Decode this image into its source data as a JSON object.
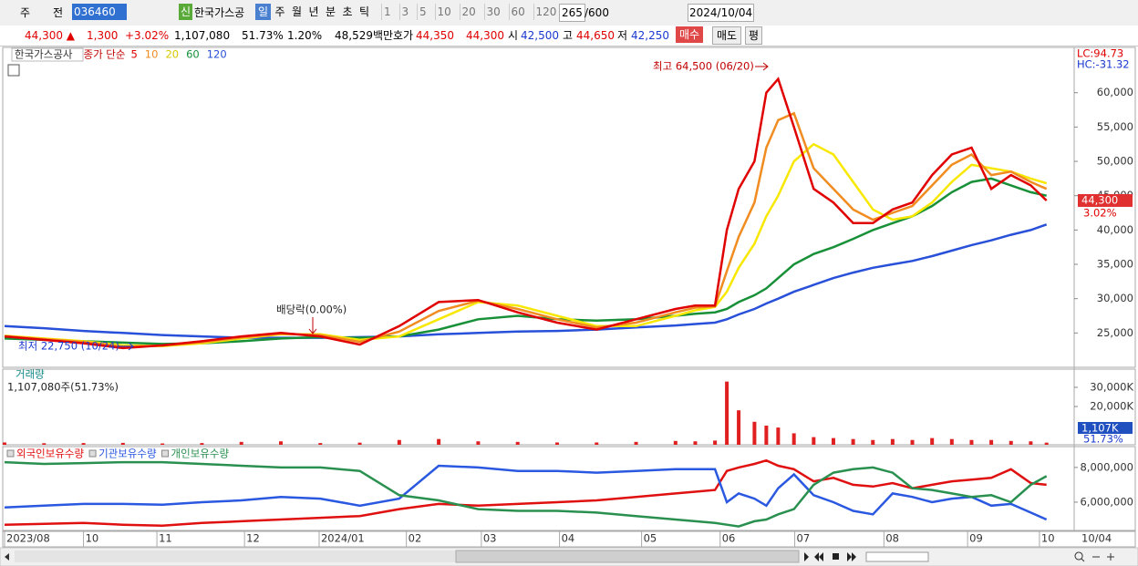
{
  "toolbar": {
    "market": "주",
    "prev": "전",
    "code": "036460",
    "sin": "신",
    "name": "한국가스공",
    "periods": [
      "일",
      "주",
      "월",
      "년",
      "분",
      "초",
      "틱"
    ],
    "intervals": [
      "1",
      "3",
      "5",
      "10",
      "20",
      "30",
      "60",
      "120"
    ],
    "count": "265",
    "max": "/600",
    "date": "2024/10/04"
  },
  "quote": {
    "price": "44,300 ▲",
    "change": "1,300",
    "change_pct": "+3.02%",
    "volume": "1,107,080",
    "volume_ratio": "51.73%",
    "turnover": "1.20%",
    "amount": "48,529백만",
    "bid_label": "호가",
    "ask": "44,350",
    "bid": "44,300",
    "open_label": "시",
    "open": "42,500",
    "high_label": "고",
    "high": "44,650",
    "low_label": "저",
    "low": "42,250",
    "buy": "매수",
    "sell": "매도",
    "avg": "평"
  },
  "chart_data": [
    {
      "type": "line",
      "title": "한국가스공사",
      "legend_label": "종가 단순",
      "lc": "LC:94.73",
      "hc": "HC:-31.32",
      "last_label": "44,300",
      "last_pct": "3.02%",
      "last_value": 44300,
      "annotations": [
        "최고 64,500 (06/20)",
        "최저 22,750 (10/24)",
        "배당락(0.00%)"
      ],
      "x": [
        0,
        10,
        20,
        30,
        40,
        50,
        60,
        70,
        80,
        90,
        100,
        110,
        120,
        130,
        140,
        150,
        160,
        170,
        175,
        180,
        183,
        186,
        190,
        193,
        196,
        200,
        205,
        210,
        215,
        220,
        225,
        230,
        235,
        240,
        245,
        250,
        255,
        260,
        264
      ],
      "xlim": [
        0,
        271
      ],
      "ylim": [
        20000,
        66600
      ],
      "yticks": [
        {
          "value": 25000,
          "label": "25,000"
        },
        {
          "value": 30000,
          "label": "30,000"
        },
        {
          "value": 35000,
          "label": "35,000"
        },
        {
          "value": 40000,
          "label": "40,000"
        },
        {
          "value": 45000,
          "label": "45,000"
        },
        {
          "value": 50000,
          "label": "50,000"
        },
        {
          "value": 55000,
          "label": "55,000"
        },
        {
          "value": 60000,
          "label": "60,000"
        }
      ],
      "series": [
        {
          "name": "120",
          "color": "#2850d8",
          "values": [
            26000,
            25700,
            25300,
            25000,
            24700,
            24500,
            24300,
            24300,
            24300,
            24400,
            24500,
            24800,
            25000,
            25200,
            25300,
            25500,
            25800,
            26100,
            26300,
            26500,
            27000,
            27700,
            28500,
            29300,
            30000,
            31000,
            32000,
            33000,
            33800,
            34500,
            35000,
            35500,
            36200,
            37000,
            37800,
            38500,
            39300,
            40000,
            40800
          ]
        },
        {
          "name": "60",
          "color": "#189038",
          "values": [
            24200,
            24000,
            23800,
            23600,
            23400,
            23500,
            23800,
            24200,
            24400,
            24300,
            24500,
            25500,
            27000,
            27500,
            27000,
            26800,
            27000,
            27500,
            27800,
            28000,
            28500,
            29500,
            30500,
            31500,
            33000,
            35000,
            36500,
            37500,
            38700,
            40000,
            41000,
            42000,
            43500,
            45500,
            47000,
            47500,
            46500,
            45500,
            45000
          ]
        },
        {
          "name": "20",
          "color": "#f8e800",
          "values": [
            24600,
            24200,
            23800,
            23200,
            23100,
            23500,
            24200,
            24800,
            24800,
            24000,
            24500,
            27000,
            29500,
            29000,
            27500,
            26000,
            26000,
            27500,
            28300,
            28800,
            31000,
            34500,
            38000,
            42000,
            45000,
            50000,
            52500,
            51000,
            47000,
            43000,
            41500,
            42000,
            44000,
            47000,
            49500,
            49000,
            48500,
            47500,
            46800
          ]
        },
        {
          "name": "10",
          "color": "#f08c20",
          "values": [
            24550,
            24100,
            23700,
            23000,
            23150,
            23650,
            24350,
            24900,
            24700,
            23700,
            25200,
            28200,
            29700,
            28500,
            27000,
            25800,
            26500,
            28000,
            28700,
            28900,
            34000,
            39000,
            44000,
            52000,
            56000,
            57000,
            49000,
            46000,
            43000,
            41500,
            42500,
            43500,
            46500,
            49500,
            51000,
            48000,
            48500,
            47000,
            46000
          ]
        },
        {
          "name": "5",
          "color": "#e00000",
          "values": [
            24500,
            24000,
            23500,
            22800,
            23200,
            23800,
            24500,
            25000,
            24500,
            23300,
            26000,
            29500,
            29800,
            28000,
            26500,
            25500,
            27000,
            28500,
            29000,
            29000,
            40000,
            46000,
            50000,
            60000,
            62000,
            55000,
            46000,
            44000,
            41000,
            41000,
            43000,
            44000,
            48000,
            51000,
            52000,
            46000,
            48000,
            46500,
            44300
          ]
        }
      ]
    },
    {
      "type": "bar",
      "title": "거래량",
      "subtitle": "1,107,080주(51.73%)",
      "last_label": "1,107K",
      "last_pct": "51.73%",
      "color": "#e02020",
      "x": [
        0,
        10,
        20,
        30,
        40,
        50,
        60,
        70,
        80,
        90,
        100,
        110,
        120,
        130,
        140,
        150,
        160,
        170,
        175,
        180,
        183,
        186,
        190,
        193,
        196,
        200,
        205,
        210,
        215,
        220,
        225,
        230,
        235,
        240,
        245,
        250,
        255,
        260,
        264
      ],
      "xlim": [
        0,
        271
      ],
      "ylim": [
        0,
        39500000
      ],
      "yticks": [
        {
          "value": 20000000,
          "label": "20,000K"
        },
        {
          "value": 30000000,
          "label": "30,000K"
        }
      ],
      "values": [
        1200000,
        800000,
        900000,
        1000000,
        700000,
        900000,
        1500000,
        1800000,
        900000,
        1100000,
        2500000,
        3000000,
        1800000,
        1500000,
        1200000,
        1200000,
        1500000,
        2000000,
        1800000,
        2200000,
        33000000,
        18000000,
        12000000,
        10000000,
        9000000,
        6000000,
        4000000,
        3500000,
        3000000,
        2500000,
        3000000,
        2500000,
        3500000,
        3000000,
        2500000,
        2500000,
        2000000,
        1800000,
        1107080
      ]
    },
    {
      "type": "line",
      "x_end_label": "10/04",
      "x": [
        0,
        10,
        20,
        30,
        40,
        50,
        60,
        70,
        80,
        90,
        100,
        110,
        120,
        130,
        140,
        150,
        160,
        170,
        175,
        180,
        183,
        186,
        190,
        193,
        196,
        200,
        205,
        210,
        215,
        220,
        225,
        230,
        235,
        240,
        245,
        250,
        255,
        260,
        264
      ],
      "xlim": [
        0,
        271
      ],
      "ylim": [
        4370000,
        9200000
      ],
      "yticks": [
        {
          "value": 6000000,
          "label": "6,000,000"
        },
        {
          "value": 8000000,
          "label": "8,000,000"
        }
      ],
      "xticks": [
        {
          "value": 0,
          "label": "2023/08"
        },
        {
          "value": 20,
          "label": "10"
        },
        {
          "value": 38.6,
          "label": "11"
        },
        {
          "value": 60.8,
          "label": "12"
        },
        {
          "value": 79.7,
          "label": "2024/01"
        },
        {
          "value": 101.8,
          "label": "02"
        },
        {
          "value": 120.8,
          "label": "03"
        },
        {
          "value": 140.6,
          "label": "04"
        },
        {
          "value": 161.4,
          "label": "05"
        },
        {
          "value": 181.3,
          "label": "06"
        },
        {
          "value": 200.2,
          "label": "07"
        },
        {
          "value": 222.8,
          "label": "08"
        },
        {
          "value": 244,
          "label": "09"
        },
        {
          "value": 262.2,
          "label": "10"
        }
      ],
      "series": [
        {
          "name": "외국인보유수량",
          "color": "#e01010",
          "values": [
            4700000,
            4750000,
            4800000,
            4700000,
            4650000,
            4800000,
            4900000,
            5000000,
            5100000,
            5200000,
            5600000,
            5900000,
            5800000,
            5900000,
            6000000,
            6100000,
            6300000,
            6500000,
            6600000,
            6700000,
            7800000,
            8000000,
            8200000,
            8400000,
            8100000,
            7900000,
            7200000,
            7400000,
            7000000,
            6900000,
            7100000,
            6800000,
            7000000,
            7200000,
            7300000,
            7400000,
            7900000,
            7100000,
            7000000
          ]
        },
        {
          "name": "기관보유수량",
          "color": "#2a58e0",
          "values": [
            5700000,
            5800000,
            5900000,
            5900000,
            5850000,
            6000000,
            6100000,
            6300000,
            6200000,
            5800000,
            6200000,
            8100000,
            8000000,
            7800000,
            7800000,
            7700000,
            7800000,
            7900000,
            7900000,
            7900000,
            6000000,
            6500000,
            6200000,
            5800000,
            6800000,
            7600000,
            6400000,
            6000000,
            5500000,
            5300000,
            6500000,
            6300000,
            6000000,
            6200000,
            6300000,
            5800000,
            5900000,
            5400000,
            5000000
          ]
        },
        {
          "name": "개인보유수량",
          "color": "#2a9050",
          "values": [
            8300000,
            8200000,
            8250000,
            8300000,
            8300000,
            8200000,
            8100000,
            8000000,
            8000000,
            7800000,
            6400000,
            6100000,
            5600000,
            5500000,
            5500000,
            5400000,
            5200000,
            5000000,
            4900000,
            4800000,
            4700000,
            4600000,
            4900000,
            5000000,
            5300000,
            5600000,
            7000000,
            7700000,
            7900000,
            8000000,
            7700000,
            6800000,
            6700000,
            6500000,
            6300000,
            6400000,
            6000000,
            7000000,
            7500000
          ]
        }
      ]
    }
  ]
}
